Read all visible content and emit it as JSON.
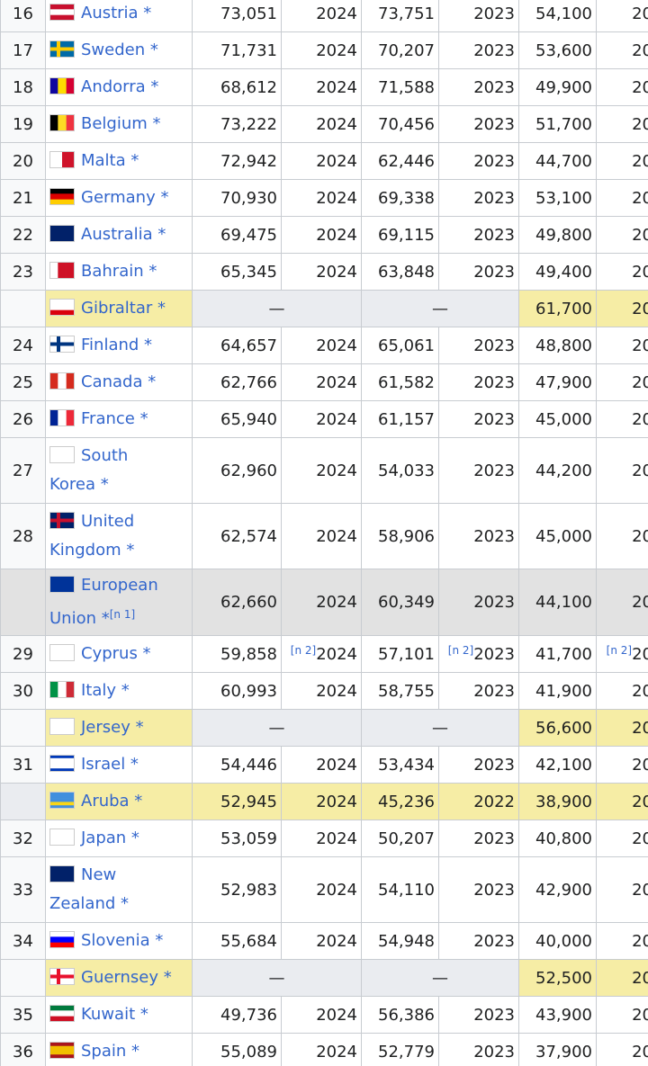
{
  "table": {
    "rows": [
      {
        "rank": 16,
        "country": "Austria *",
        "imf": "73,051",
        "imf_year": 2024,
        "wb": "73,751",
        "wb_year": 2023,
        "cia": "54,100",
        "cia_year": "20"
      },
      {
        "rank": 17,
        "country": "Sweden *",
        "imf": "71,731",
        "imf_year": 2024,
        "wb": "70,207",
        "wb_year": 2023,
        "cia": "53,600",
        "cia_year": "20"
      },
      {
        "rank": 18,
        "country": "Andorra *",
        "imf": "68,612",
        "imf_year": 2024,
        "wb": "71,588",
        "wb_year": 2023,
        "cia": "49,900",
        "cia_year": "20"
      },
      {
        "rank": 19,
        "country": "Belgium *",
        "imf": "73,222",
        "imf_year": 2024,
        "wb": "70,456",
        "wb_year": 2023,
        "cia": "51,700",
        "cia_year": "20"
      },
      {
        "rank": 20,
        "country": "Malta *",
        "imf": "72,942",
        "imf_year": 2024,
        "wb": "62,446",
        "wb_year": 2023,
        "cia": "44,700",
        "cia_year": "20"
      },
      {
        "rank": 21,
        "country": "Germany *",
        "imf": "70,930",
        "imf_year": 2024,
        "wb": "69,338",
        "wb_year": 2023,
        "cia": "53,100",
        "cia_year": "20"
      },
      {
        "rank": 22,
        "country": "Australia *",
        "imf": "69,475",
        "imf_year": 2024,
        "wb": "69,115",
        "wb_year": 2023,
        "cia": "49,800",
        "cia_year": "20"
      },
      {
        "rank": 23,
        "country": "Bahrain *",
        "imf": "65,345",
        "imf_year": 2024,
        "wb": "63,848",
        "wb_year": 2023,
        "cia": "49,400",
        "cia_year": "20"
      },
      {
        "country": "Gibraltar *",
        "imf": "—",
        "wb": "—",
        "cia": "61,700",
        "cia_year": "20"
      },
      {
        "rank": 24,
        "country": "Finland *",
        "imf": "64,657",
        "imf_year": 2024,
        "wb": "65,061",
        "wb_year": 2023,
        "cia": "48,800",
        "cia_year": "20"
      },
      {
        "rank": 25,
        "country": "Canada *",
        "imf": "62,766",
        "imf_year": 2024,
        "wb": "61,582",
        "wb_year": 2023,
        "cia": "47,900",
        "cia_year": "20"
      },
      {
        "rank": 26,
        "country": "France *",
        "imf": "65,940",
        "imf_year": 2024,
        "wb": "61,157",
        "wb_year": 2023,
        "cia": "45,000",
        "cia_year": "20"
      },
      {
        "rank": 27,
        "country": "South Korea *",
        "imf": "62,960",
        "imf_year": 2024,
        "wb": "54,033",
        "wb_year": 2023,
        "cia": "44,200",
        "cia_year": "20"
      },
      {
        "rank": 28,
        "country": "United Kingdom *",
        "imf": "62,574",
        "imf_year": 2024,
        "wb": "58,906",
        "wb_year": 2023,
        "cia": "45,000",
        "cia_year": "20"
      },
      {
        "country": "European Union *",
        "country_note": "[n 1]",
        "imf": "62,660",
        "imf_year": 2024,
        "wb": "60,349",
        "wb_year": 2023,
        "cia": "44,100",
        "cia_year": "20"
      },
      {
        "rank": 29,
        "country": "Cyprus *",
        "imf": "59,858",
        "imf_year_note": "[n 2]",
        "imf_year": 2024,
        "wb": "57,101",
        "wb_year_note": "[n 2]",
        "wb_year": 2023,
        "cia": "41,700",
        "cia_year_note": "[n 2]",
        "cia_year": "20"
      },
      {
        "rank": 30,
        "country": "Italy *",
        "imf": "60,993",
        "imf_year": 2024,
        "wb": "58,755",
        "wb_year": 2023,
        "cia": "41,900",
        "cia_year": "20"
      },
      {
        "country": "Jersey *",
        "imf": "—",
        "wb": "—",
        "cia": "56,600",
        "cia_year": "20"
      },
      {
        "rank": 31,
        "country": "Israel *",
        "imf": "54,446",
        "imf_year": 2024,
        "wb": "53,434",
        "wb_year": 2023,
        "cia": "42,100",
        "cia_year": "20"
      },
      {
        "country": "Aruba *",
        "imf": "52,945",
        "imf_year": 2024,
        "wb": "45,236",
        "wb_year": 2022,
        "cia": "38,900",
        "cia_year": "20"
      },
      {
        "rank": 32,
        "country": "Japan *",
        "imf": "53,059",
        "imf_year": 2024,
        "wb": "50,207",
        "wb_year": 2023,
        "cia": "40,800",
        "cia_year": "20"
      },
      {
        "rank": 33,
        "country": "New Zealand *",
        "imf": "52,983",
        "imf_year": 2024,
        "wb": "54,110",
        "wb_year": 2023,
        "cia": "42,900",
        "cia_year": "20"
      },
      {
        "rank": 34,
        "country": "Slovenia *",
        "imf": "55,684",
        "imf_year": 2024,
        "wb": "54,948",
        "wb_year": 2023,
        "cia": "40,000",
        "cia_year": "20"
      },
      {
        "country": "Guernsey *",
        "imf": "—",
        "wb": "—",
        "cia": "52,500",
        "cia_year": "20"
      },
      {
        "rank": 35,
        "country": "Kuwait *",
        "imf": "49,736",
        "imf_year": 2024,
        "wb": "56,386",
        "wb_year": 2023,
        "cia": "43,900",
        "cia_year": "20"
      },
      {
        "rank": 36,
        "country": "Spain *",
        "imf": "55,089",
        "imf_year": 2024,
        "wb": "52,779",
        "wb_year": 2023,
        "cia": "37,900",
        "cia_year": "20"
      }
    ]
  }
}
